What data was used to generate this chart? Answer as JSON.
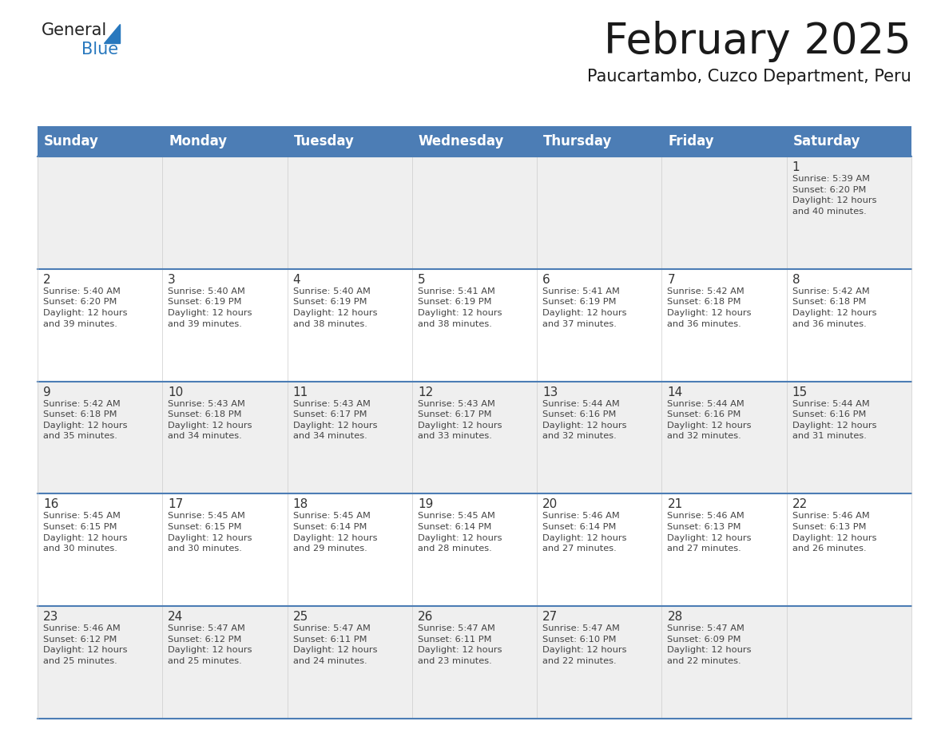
{
  "title": "February 2025",
  "subtitle": "Paucartambo, Cuzco Department, Peru",
  "header_bg": "#4C7DB5",
  "header_text_color": "#FFFFFF",
  "header_days": [
    "Sunday",
    "Monday",
    "Tuesday",
    "Wednesday",
    "Thursday",
    "Friday",
    "Saturday"
  ],
  "cell_bg_gray": "#EFEFEF",
  "cell_bg_white": "#FFFFFF",
  "cell_border_color": "#4C7DB5",
  "text_color": "#444444",
  "day_number_color": "#333333",
  "logo_general_color": "#222222",
  "logo_blue_color": "#2878BE",
  "title_color": "#1a1a1a",
  "subtitle_color": "#1a1a1a",
  "weeks": [
    {
      "days": [
        {
          "date": null,
          "info": null
        },
        {
          "date": null,
          "info": null
        },
        {
          "date": null,
          "info": null
        },
        {
          "date": null,
          "info": null
        },
        {
          "date": null,
          "info": null
        },
        {
          "date": null,
          "info": null
        },
        {
          "date": 1,
          "info": "Sunrise: 5:39 AM\nSunset: 6:20 PM\nDaylight: 12 hours\nand 40 minutes."
        }
      ]
    },
    {
      "days": [
        {
          "date": 2,
          "info": "Sunrise: 5:40 AM\nSunset: 6:20 PM\nDaylight: 12 hours\nand 39 minutes."
        },
        {
          "date": 3,
          "info": "Sunrise: 5:40 AM\nSunset: 6:19 PM\nDaylight: 12 hours\nand 39 minutes."
        },
        {
          "date": 4,
          "info": "Sunrise: 5:40 AM\nSunset: 6:19 PM\nDaylight: 12 hours\nand 38 minutes."
        },
        {
          "date": 5,
          "info": "Sunrise: 5:41 AM\nSunset: 6:19 PM\nDaylight: 12 hours\nand 38 minutes."
        },
        {
          "date": 6,
          "info": "Sunrise: 5:41 AM\nSunset: 6:19 PM\nDaylight: 12 hours\nand 37 minutes."
        },
        {
          "date": 7,
          "info": "Sunrise: 5:42 AM\nSunset: 6:18 PM\nDaylight: 12 hours\nand 36 minutes."
        },
        {
          "date": 8,
          "info": "Sunrise: 5:42 AM\nSunset: 6:18 PM\nDaylight: 12 hours\nand 36 minutes."
        }
      ]
    },
    {
      "days": [
        {
          "date": 9,
          "info": "Sunrise: 5:42 AM\nSunset: 6:18 PM\nDaylight: 12 hours\nand 35 minutes."
        },
        {
          "date": 10,
          "info": "Sunrise: 5:43 AM\nSunset: 6:18 PM\nDaylight: 12 hours\nand 34 minutes."
        },
        {
          "date": 11,
          "info": "Sunrise: 5:43 AM\nSunset: 6:17 PM\nDaylight: 12 hours\nand 34 minutes."
        },
        {
          "date": 12,
          "info": "Sunrise: 5:43 AM\nSunset: 6:17 PM\nDaylight: 12 hours\nand 33 minutes."
        },
        {
          "date": 13,
          "info": "Sunrise: 5:44 AM\nSunset: 6:16 PM\nDaylight: 12 hours\nand 32 minutes."
        },
        {
          "date": 14,
          "info": "Sunrise: 5:44 AM\nSunset: 6:16 PM\nDaylight: 12 hours\nand 32 minutes."
        },
        {
          "date": 15,
          "info": "Sunrise: 5:44 AM\nSunset: 6:16 PM\nDaylight: 12 hours\nand 31 minutes."
        }
      ]
    },
    {
      "days": [
        {
          "date": 16,
          "info": "Sunrise: 5:45 AM\nSunset: 6:15 PM\nDaylight: 12 hours\nand 30 minutes."
        },
        {
          "date": 17,
          "info": "Sunrise: 5:45 AM\nSunset: 6:15 PM\nDaylight: 12 hours\nand 30 minutes."
        },
        {
          "date": 18,
          "info": "Sunrise: 5:45 AM\nSunset: 6:14 PM\nDaylight: 12 hours\nand 29 minutes."
        },
        {
          "date": 19,
          "info": "Sunrise: 5:45 AM\nSunset: 6:14 PM\nDaylight: 12 hours\nand 28 minutes."
        },
        {
          "date": 20,
          "info": "Sunrise: 5:46 AM\nSunset: 6:14 PM\nDaylight: 12 hours\nand 27 minutes."
        },
        {
          "date": 21,
          "info": "Sunrise: 5:46 AM\nSunset: 6:13 PM\nDaylight: 12 hours\nand 27 minutes."
        },
        {
          "date": 22,
          "info": "Sunrise: 5:46 AM\nSunset: 6:13 PM\nDaylight: 12 hours\nand 26 minutes."
        }
      ]
    },
    {
      "days": [
        {
          "date": 23,
          "info": "Sunrise: 5:46 AM\nSunset: 6:12 PM\nDaylight: 12 hours\nand 25 minutes."
        },
        {
          "date": 24,
          "info": "Sunrise: 5:47 AM\nSunset: 6:12 PM\nDaylight: 12 hours\nand 25 minutes."
        },
        {
          "date": 25,
          "info": "Sunrise: 5:47 AM\nSunset: 6:11 PM\nDaylight: 12 hours\nand 24 minutes."
        },
        {
          "date": 26,
          "info": "Sunrise: 5:47 AM\nSunset: 6:11 PM\nDaylight: 12 hours\nand 23 minutes."
        },
        {
          "date": 27,
          "info": "Sunrise: 5:47 AM\nSunset: 6:10 PM\nDaylight: 12 hours\nand 22 minutes."
        },
        {
          "date": 28,
          "info": "Sunrise: 5:47 AM\nSunset: 6:09 PM\nDaylight: 12 hours\nand 22 minutes."
        },
        {
          "date": null,
          "info": null
        }
      ]
    }
  ]
}
